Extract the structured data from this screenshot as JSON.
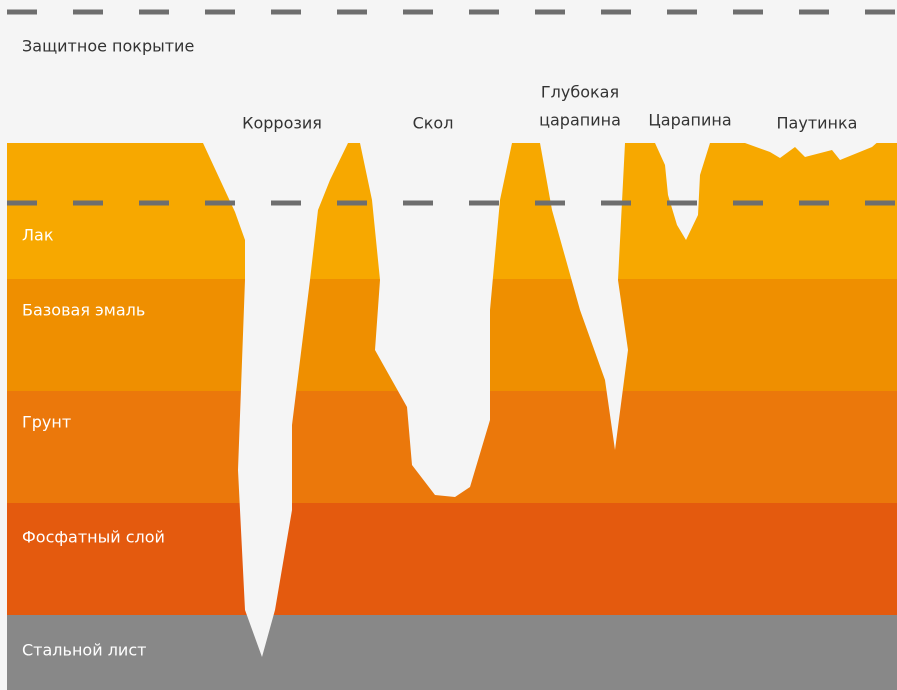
{
  "header": {
    "title": "Защитное покрытие"
  },
  "damages": [
    {
      "lines": [
        "Коррозия"
      ]
    },
    {
      "lines": [
        "Скол"
      ]
    },
    {
      "lines": [
        "Глубокая",
        "царапина"
      ]
    },
    {
      "lines": [
        "Царапина"
      ]
    },
    {
      "lines": [
        "Паутинка"
      ]
    }
  ],
  "layers": [
    {
      "label": "Лак"
    },
    {
      "label": "Базовая эмаль"
    },
    {
      "label": "Грунт"
    },
    {
      "label": "Фосфатный слой"
    },
    {
      "label": "Стальной лист"
    }
  ]
}
